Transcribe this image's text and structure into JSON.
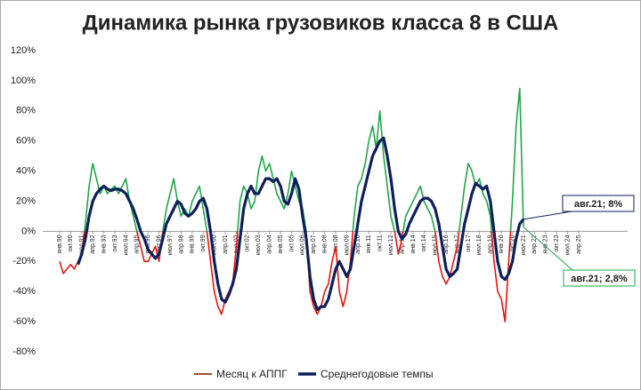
{
  "chart_data": {
    "type": "line",
    "title": "Динамика рынка грузовиков класса 8 в США",
    "categories": [
      "янв.90",
      null,
      null,
      "окт.90",
      null,
      null,
      "июл.91",
      null,
      null,
      "апр.92",
      null,
      null,
      "янв.93",
      null,
      null,
      "окт.93",
      null,
      null,
      "июл.94",
      null,
      null,
      "апр.95",
      null,
      null,
      "янв.96",
      null,
      null,
      "окт.96",
      null,
      null,
      "июл.97",
      null,
      null,
      "апр.98",
      null,
      null,
      "янв.99",
      null,
      null,
      "окт.99",
      null,
      null,
      "июл.00",
      null,
      null,
      "апр.01",
      null,
      null,
      "янв.02",
      null,
      null,
      "окт.02",
      null,
      null,
      "июл.03",
      null,
      null,
      "апр.04",
      null,
      null,
      "янв.05",
      null,
      null,
      "окт.05",
      null,
      null,
      "июл.06",
      null,
      null,
      "апр.07",
      null,
      null,
      "янв.08",
      null,
      null,
      "окт.08",
      null,
      null,
      "июл.09",
      null,
      null,
      "апр.10",
      null,
      null,
      "янв.11",
      null,
      null,
      "окт.11",
      null,
      null,
      "июл.12",
      null,
      null,
      "апр.13",
      null,
      null,
      "янв.14",
      null,
      null,
      "окт.14",
      null,
      null,
      "июл.15",
      null,
      null,
      "апр.16",
      null,
      null,
      "янв.17",
      null,
      null,
      "окт.17",
      null,
      null,
      "июл.18",
      null,
      null,
      "апр.19",
      null,
      null,
      "янв.20",
      null,
      null,
      "окт.20",
      null,
      null,
      "июл.21",
      null,
      null,
      "апр.22",
      null,
      null,
      "янв.23",
      null,
      null,
      "окт.23",
      null,
      null,
      "июл.24",
      null,
      null,
      "апр.25"
    ],
    "series": [
      {
        "name": "Месяц к АППГ",
        "color": "#a0522d",
        "positive_color": "#1fa84a",
        "negative_color": "#e8140c",
        "values": [
          -20,
          -28,
          -25,
          -22,
          -25,
          -20,
          -15,
          5,
          30,
          45,
          35,
          25,
          30,
          25,
          28,
          30,
          25,
          30,
          35,
          20,
          10,
          0,
          -10,
          -20,
          -20,
          -15,
          -10,
          -20,
          0,
          15,
          25,
          35,
          20,
          10,
          15,
          10,
          20,
          25,
          30,
          15,
          0,
          -20,
          -40,
          -50,
          -55,
          -45,
          -40,
          -35,
          -10,
          20,
          30,
          25,
          15,
          20,
          40,
          50,
          40,
          45,
          35,
          25,
          20,
          15,
          25,
          40,
          30,
          20,
          15,
          0,
          -40,
          -50,
          -55,
          -50,
          -40,
          -35,
          -20,
          -10,
          -40,
          -50,
          -40,
          -20,
          10,
          30,
          35,
          45,
          60,
          70,
          55,
          80,
          50,
          30,
          10,
          0,
          -15,
          -5,
          10,
          15,
          20,
          25,
          30,
          20,
          15,
          10,
          0,
          -20,
          -30,
          -35,
          -30,
          -20,
          -10,
          10,
          30,
          45,
          40,
          30,
          35,
          25,
          20,
          10,
          -20,
          -40,
          -45,
          -60,
          -20,
          20,
          70,
          95,
          2.8,
          null,
          null,
          null,
          null,
          null,
          null,
          null,
          null,
          null,
          null,
          null,
          null,
          null,
          null,
          null
        ]
      },
      {
        "name": "Среднегодовые темпы",
        "color": "#0d1f5c",
        "values": [
          null,
          null,
          null,
          null,
          null,
          -22,
          -15,
          -5,
          10,
          20,
          25,
          28,
          30,
          28,
          27,
          28,
          28,
          27,
          25,
          20,
          15,
          8,
          0,
          -5,
          -12,
          -15,
          -18,
          -15,
          -5,
          5,
          10,
          15,
          20,
          18,
          12,
          10,
          12,
          15,
          20,
          22,
          15,
          0,
          -20,
          -35,
          -45,
          -47,
          -42,
          -35,
          -25,
          -5,
          15,
          25,
          30,
          25,
          25,
          30,
          35,
          35,
          33,
          35,
          30,
          20,
          18,
          25,
          35,
          28,
          10,
          -5,
          -30,
          -45,
          -52,
          -50,
          -50,
          -45,
          -35,
          -25,
          -20,
          -25,
          -30,
          -25,
          -10,
          5,
          20,
          30,
          40,
          50,
          55,
          60,
          62,
          50,
          35,
          15,
          0,
          -5,
          -2,
          5,
          10,
          15,
          20,
          22,
          22,
          20,
          15,
          5,
          -10,
          -25,
          -30,
          -28,
          -25,
          -10,
          5,
          15,
          25,
          32,
          30,
          28,
          30,
          20,
          0,
          -20,
          -30,
          -32,
          -28,
          -20,
          -5,
          5,
          8,
          null,
          null,
          null,
          null,
          null,
          null,
          null,
          null,
          null,
          null,
          null,
          null,
          null,
          null,
          null
        ]
      }
    ],
    "annotations": [
      {
        "series": 1,
        "text": "авг.21; 8%"
      },
      {
        "series": 0,
        "text": "авг.21; 2,8%"
      }
    ],
    "ylim": [
      -80,
      120
    ],
    "yticks": [
      {
        "value": -80,
        "label": "-80%"
      },
      {
        "value": -60,
        "label": "-60%"
      },
      {
        "value": -40,
        "label": "-40%"
      },
      {
        "value": -20,
        "label": "-20%"
      },
      {
        "value": 0,
        "label": "0%"
      },
      {
        "value": 20,
        "label": "20%"
      },
      {
        "value": 40,
        "label": "40%"
      },
      {
        "value": 60,
        "label": "60%"
      },
      {
        "value": 80,
        "label": "80%"
      },
      {
        "value": 100,
        "label": "100%"
      },
      {
        "value": 120,
        "label": "120%"
      }
    ],
    "grid": false
  }
}
